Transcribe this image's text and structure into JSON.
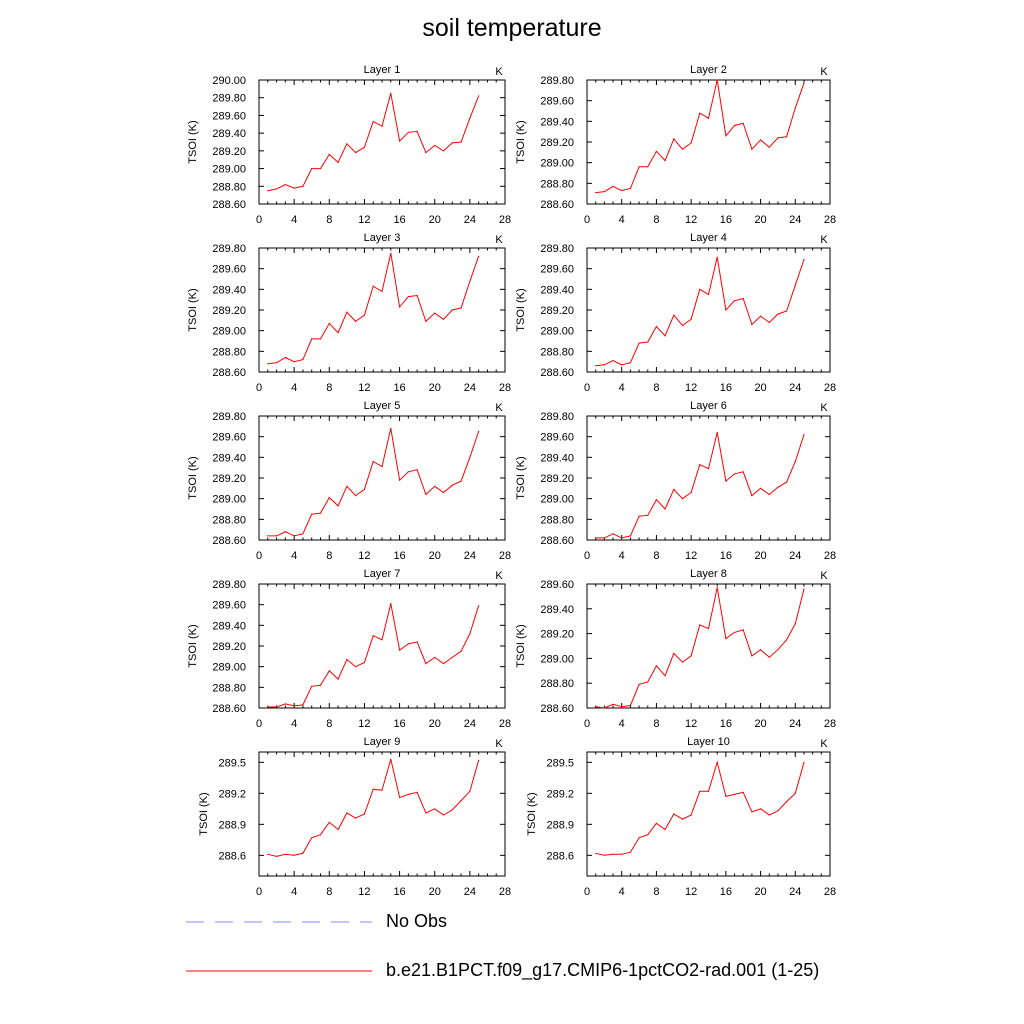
{
  "figure": {
    "title": "soil temperature",
    "line_color": "#ff0000",
    "obs_color": "#9f9fff"
  },
  "legend": {
    "obs_label": "No Obs",
    "model_label": "b.e21.B1PCT.f09_g17.CMIP6-1pctCO2-rad.001 (1-25)"
  },
  "chart_data": [
    {
      "type": "line",
      "title": "Layer 1",
      "units": "K",
      "ylabel": "TSOI  (K)",
      "xlim": [
        0,
        28
      ],
      "ylim": [
        288.6,
        290.0
      ],
      "xticks": [
        0,
        4,
        8,
        12,
        16,
        20,
        24,
        28
      ],
      "yticks": [
        288.6,
        288.8,
        289.0,
        289.2,
        289.4,
        289.6,
        289.8,
        290.0
      ],
      "ytick_labels": [
        "288.60",
        "288.80",
        "289.00",
        "289.20",
        "289.40",
        "289.60",
        "289.80",
        "290.00"
      ],
      "x": [
        1,
        2,
        3,
        4,
        5,
        6,
        7,
        8,
        9,
        10,
        11,
        12,
        13,
        14,
        15,
        16,
        17,
        18,
        19,
        20,
        21,
        22,
        23,
        24,
        25
      ],
      "series": [
        {
          "values": [
            288.75,
            288.77,
            288.82,
            288.78,
            288.8,
            289.0,
            289.0,
            289.16,
            289.07,
            289.28,
            289.18,
            289.24,
            289.53,
            289.48,
            289.85,
            289.31,
            289.41,
            289.42,
            289.18,
            289.26,
            289.2,
            289.29,
            289.3,
            289.57,
            289.82
          ]
        }
      ]
    },
    {
      "type": "line",
      "title": "Layer 2",
      "units": "K",
      "ylabel": "TSOI  (K)",
      "xlim": [
        0,
        28
      ],
      "ylim": [
        288.6,
        289.8
      ],
      "xticks": [
        0,
        4,
        8,
        12,
        16,
        20,
        24,
        28
      ],
      "yticks": [
        288.6,
        288.8,
        289.0,
        289.2,
        289.4,
        289.6,
        289.8
      ],
      "ytick_labels": [
        "288.60",
        "288.80",
        "289.00",
        "289.20",
        "289.40",
        "289.60",
        "289.80"
      ],
      "x": [
        1,
        2,
        3,
        4,
        5,
        6,
        7,
        8,
        9,
        10,
        11,
        12,
        13,
        14,
        15,
        16,
        17,
        18,
        19,
        20,
        21,
        22,
        23,
        24,
        25
      ],
      "series": [
        {
          "values": [
            288.71,
            288.72,
            288.77,
            288.73,
            288.75,
            288.96,
            288.96,
            289.11,
            289.02,
            289.23,
            289.13,
            289.19,
            289.48,
            289.43,
            289.8,
            289.26,
            289.36,
            289.38,
            289.13,
            289.22,
            289.15,
            289.24,
            289.25,
            289.53,
            289.77
          ]
        }
      ]
    },
    {
      "type": "line",
      "title": "Layer 3",
      "units": "K",
      "ylabel": "TSOI  (K)",
      "xlim": [
        0,
        28
      ],
      "ylim": [
        288.6,
        289.8
      ],
      "xticks": [
        0,
        4,
        8,
        12,
        16,
        20,
        24,
        28
      ],
      "yticks": [
        288.6,
        288.8,
        289.0,
        289.2,
        289.4,
        289.6,
        289.8
      ],
      "ytick_labels": [
        "288.60",
        "288.80",
        "289.00",
        "289.20",
        "289.40",
        "289.60",
        "289.80"
      ],
      "x": [
        1,
        2,
        3,
        4,
        5,
        6,
        7,
        8,
        9,
        10,
        11,
        12,
        13,
        14,
        15,
        16,
        17,
        18,
        19,
        20,
        21,
        22,
        23,
        24,
        25
      ],
      "series": [
        {
          "values": [
            288.68,
            288.69,
            288.74,
            288.7,
            288.72,
            288.92,
            288.92,
            289.07,
            288.98,
            289.18,
            289.09,
            289.15,
            289.43,
            289.38,
            289.75,
            289.23,
            289.33,
            289.34,
            289.09,
            289.17,
            289.11,
            289.2,
            289.22,
            289.48,
            289.72
          ]
        }
      ]
    },
    {
      "type": "line",
      "title": "Layer 4",
      "units": "K",
      "ylabel": "TSOI  (K)",
      "xlim": [
        0,
        28
      ],
      "ylim": [
        288.6,
        289.8
      ],
      "xticks": [
        0,
        4,
        8,
        12,
        16,
        20,
        24,
        28
      ],
      "yticks": [
        288.6,
        288.8,
        289.0,
        289.2,
        289.4,
        289.6,
        289.8
      ],
      "ytick_labels": [
        "288.60",
        "288.80",
        "289.00",
        "289.20",
        "289.40",
        "289.60",
        "289.80"
      ],
      "x": [
        1,
        2,
        3,
        4,
        5,
        6,
        7,
        8,
        9,
        10,
        11,
        12,
        13,
        14,
        15,
        16,
        17,
        18,
        19,
        20,
        21,
        22,
        23,
        24,
        25
      ],
      "series": [
        {
          "values": [
            288.66,
            288.67,
            288.71,
            288.67,
            288.69,
            288.88,
            288.89,
            289.04,
            288.95,
            289.15,
            289.05,
            289.11,
            289.4,
            289.35,
            289.71,
            289.2,
            289.29,
            289.31,
            289.06,
            289.14,
            289.08,
            289.16,
            289.19,
            289.44,
            289.69
          ]
        }
      ]
    },
    {
      "type": "line",
      "title": "Layer 5",
      "units": "K",
      "ylabel": "TSOI  (K)",
      "xlim": [
        0,
        28
      ],
      "ylim": [
        288.6,
        289.8
      ],
      "xticks": [
        0,
        4,
        8,
        12,
        16,
        20,
        24,
        28
      ],
      "yticks": [
        288.6,
        288.8,
        289.0,
        289.2,
        289.4,
        289.6,
        289.8
      ],
      "ytick_labels": [
        "288.60",
        "288.80",
        "289.00",
        "289.20",
        "289.40",
        "289.60",
        "289.80"
      ],
      "x": [
        1,
        2,
        3,
        4,
        5,
        6,
        7,
        8,
        9,
        10,
        11,
        12,
        13,
        14,
        15,
        16,
        17,
        18,
        19,
        20,
        21,
        22,
        23,
        24,
        25
      ],
      "series": [
        {
          "values": [
            288.64,
            288.64,
            288.68,
            288.64,
            288.66,
            288.85,
            288.86,
            289.01,
            288.93,
            289.12,
            289.03,
            289.09,
            289.36,
            289.31,
            289.68,
            289.18,
            289.26,
            289.28,
            289.04,
            289.12,
            289.06,
            289.13,
            289.17,
            289.4,
            289.65
          ]
        }
      ]
    },
    {
      "type": "line",
      "title": "Layer 6",
      "units": "K",
      "ylabel": "TSOI  (K)",
      "xlim": [
        0,
        28
      ],
      "ylim": [
        288.6,
        289.8
      ],
      "xticks": [
        0,
        4,
        8,
        12,
        16,
        20,
        24,
        28
      ],
      "yticks": [
        288.6,
        288.8,
        289.0,
        289.2,
        289.4,
        289.6,
        289.8
      ],
      "ytick_labels": [
        "288.60",
        "288.80",
        "289.00",
        "289.20",
        "289.40",
        "289.60",
        "289.80"
      ],
      "x": [
        1,
        2,
        3,
        4,
        5,
        6,
        7,
        8,
        9,
        10,
        11,
        12,
        13,
        14,
        15,
        16,
        17,
        18,
        19,
        20,
        21,
        22,
        23,
        24,
        25
      ],
      "series": [
        {
          "values": [
            288.62,
            288.62,
            288.66,
            288.62,
            288.64,
            288.83,
            288.84,
            288.99,
            288.9,
            289.09,
            289.0,
            289.06,
            289.33,
            289.29,
            289.64,
            289.17,
            289.24,
            289.26,
            289.03,
            289.1,
            289.04,
            289.11,
            289.16,
            289.36,
            289.62
          ]
        }
      ]
    },
    {
      "type": "line",
      "title": "Layer 7",
      "units": "K",
      "ylabel": "TSOI  (K)",
      "xlim": [
        0,
        28
      ],
      "ylim": [
        288.6,
        289.8
      ],
      "xticks": [
        0,
        4,
        8,
        12,
        16,
        20,
        24,
        28
      ],
      "yticks": [
        288.6,
        288.8,
        289.0,
        289.2,
        289.4,
        289.6,
        289.8
      ],
      "ytick_labels": [
        "288.60",
        "288.80",
        "289.00",
        "289.20",
        "289.40",
        "289.60",
        "289.80"
      ],
      "x": [
        1,
        2,
        3,
        4,
        5,
        6,
        7,
        8,
        9,
        10,
        11,
        12,
        13,
        14,
        15,
        16,
        17,
        18,
        19,
        20,
        21,
        22,
        23,
        24,
        25
      ],
      "series": [
        {
          "values": [
            288.61,
            288.61,
            288.64,
            288.62,
            288.63,
            288.81,
            288.82,
            288.96,
            288.88,
            289.07,
            289.0,
            289.04,
            289.3,
            289.26,
            289.61,
            289.16,
            289.22,
            289.24,
            289.03,
            289.09,
            289.03,
            289.09,
            289.15,
            289.32,
            289.59
          ]
        }
      ]
    },
    {
      "type": "line",
      "title": "Layer 8",
      "units": "K",
      "ylabel": "TSOI  (K)",
      "xlim": [
        0,
        28
      ],
      "ylim": [
        288.6,
        289.6
      ],
      "xticks": [
        0,
        4,
        8,
        12,
        16,
        20,
        24,
        28
      ],
      "yticks": [
        288.6,
        288.8,
        289.0,
        289.2,
        289.4,
        289.6
      ],
      "ytick_labels": [
        "288.60",
        "288.80",
        "289.00",
        "289.20",
        "289.40",
        "289.60"
      ],
      "x": [
        1,
        2,
        3,
        4,
        5,
        6,
        7,
        8,
        9,
        10,
        11,
        12,
        13,
        14,
        15,
        16,
        17,
        18,
        19,
        20,
        21,
        22,
        23,
        24,
        25
      ],
      "series": [
        {
          "values": [
            288.61,
            288.6,
            288.63,
            288.61,
            288.62,
            288.79,
            288.81,
            288.94,
            288.86,
            289.04,
            288.97,
            289.02,
            289.27,
            289.24,
            289.57,
            289.16,
            289.21,
            289.23,
            289.02,
            289.07,
            289.01,
            289.07,
            289.15,
            289.28,
            289.56
          ]
        }
      ]
    },
    {
      "type": "line",
      "title": "Layer 9",
      "units": "K",
      "ylabel": "TSOI  (K)",
      "xlim": [
        0,
        28
      ],
      "ylim": [
        288.4,
        289.6
      ],
      "xticks": [
        0,
        4,
        8,
        12,
        16,
        20,
        24,
        28
      ],
      "yticks": [
        288.6,
        288.9,
        289.2,
        289.5
      ],
      "ytick_labels": [
        "288.6",
        "288.9",
        "289.2",
        "289.5"
      ],
      "x": [
        1,
        2,
        3,
        4,
        5,
        6,
        7,
        8,
        9,
        10,
        11,
        12,
        13,
        14,
        15,
        16,
        17,
        18,
        19,
        20,
        21,
        22,
        23,
        24,
        25
      ],
      "series": [
        {
          "values": [
            288.61,
            288.59,
            288.61,
            288.6,
            288.62,
            288.77,
            288.8,
            288.92,
            288.85,
            289.01,
            288.96,
            289.0,
            289.24,
            289.23,
            289.53,
            289.16,
            289.19,
            289.21,
            289.01,
            289.05,
            288.99,
            289.04,
            289.13,
            289.22,
            289.52
          ]
        }
      ]
    },
    {
      "type": "line",
      "title": "Layer 10",
      "units": "K",
      "ylabel": "TSOI  (K)",
      "xlim": [
        0,
        28
      ],
      "ylim": [
        288.4,
        289.6
      ],
      "xticks": [
        0,
        4,
        8,
        12,
        16,
        20,
        24,
        28
      ],
      "yticks": [
        288.6,
        288.9,
        289.2,
        289.5
      ],
      "ytick_labels": [
        "288.6",
        "288.9",
        "289.2",
        "289.5"
      ],
      "x": [
        1,
        2,
        3,
        4,
        5,
        6,
        7,
        8,
        9,
        10,
        11,
        12,
        13,
        14,
        15,
        16,
        17,
        18,
        19,
        20,
        21,
        22,
        23,
        24,
        25
      ],
      "series": [
        {
          "values": [
            288.62,
            288.6,
            288.61,
            288.61,
            288.63,
            288.77,
            288.8,
            288.91,
            288.85,
            289.0,
            288.95,
            288.99,
            289.22,
            289.22,
            289.5,
            289.17,
            289.19,
            289.21,
            289.02,
            289.05,
            288.99,
            289.03,
            289.12,
            289.2,
            289.5
          ]
        }
      ]
    }
  ]
}
